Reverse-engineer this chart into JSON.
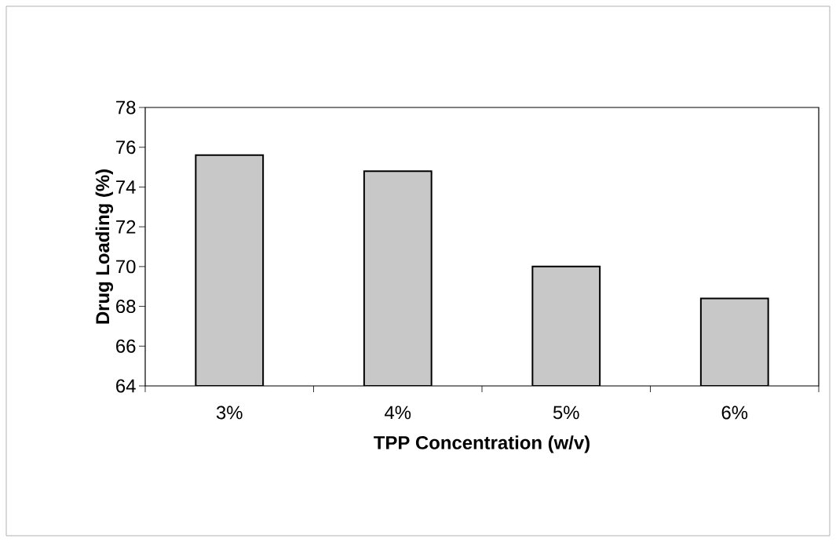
{
  "chart_data": {
    "type": "bar",
    "xlabel": "TPP Concentration (w/v)",
    "ylabel": "Drug Loading (%)",
    "categories": [
      "3%",
      "4%",
      "5%",
      "6%"
    ],
    "values": [
      75.6,
      74.8,
      70.0,
      68.4
    ],
    "color": "#c8c8c8",
    "ylim": [
      64,
      78
    ],
    "yticks": [
      64,
      66,
      68,
      70,
      72,
      74,
      76,
      78
    ],
    "grid": false
  }
}
